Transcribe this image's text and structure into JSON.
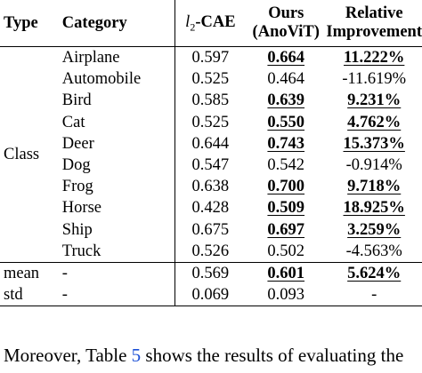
{
  "table": {
    "headers": {
      "type": "Type",
      "category": "Category",
      "baseline_symbol": "l",
      "baseline_sub": "2",
      "baseline_suffix": "-CAE",
      "ours_line1": "Ours",
      "ours_line2": "(AnoViT)",
      "rel_line1": "Relative",
      "rel_line2": "Improvement"
    },
    "class_group_label": "Class",
    "class_rows": [
      {
        "category": "Airplane",
        "baseline": "0.597",
        "ours": "0.664",
        "ours_best": true,
        "relative": "11.222%",
        "relative_best": true
      },
      {
        "category": "Automobile",
        "baseline": "0.525",
        "ours": "0.464",
        "ours_best": false,
        "relative": "-11.619%",
        "relative_best": false
      },
      {
        "category": "Bird",
        "baseline": "0.585",
        "ours": "0.639",
        "ours_best": true,
        "relative": "9.231%",
        "relative_best": true
      },
      {
        "category": "Cat",
        "baseline": "0.525",
        "ours": "0.550",
        "ours_best": true,
        "relative": "4.762%",
        "relative_best": true
      },
      {
        "category": "Deer",
        "baseline": "0.644",
        "ours": "0.743",
        "ours_best": true,
        "relative": "15.373%",
        "relative_best": true
      },
      {
        "category": "Dog",
        "baseline": "0.547",
        "ours": "0.542",
        "ours_best": false,
        "relative": "-0.914%",
        "relative_best": false
      },
      {
        "category": "Frog",
        "baseline": "0.638",
        "ours": "0.700",
        "ours_best": true,
        "relative": "9.718%",
        "relative_best": true
      },
      {
        "category": "Horse",
        "baseline": "0.428",
        "ours": "0.509",
        "ours_best": true,
        "relative": "18.925%",
        "relative_best": true
      },
      {
        "category": "Ship",
        "baseline": "0.675",
        "ours": "0.697",
        "ours_best": true,
        "relative": "3.259%",
        "relative_best": true
      },
      {
        "category": "Truck",
        "baseline": "0.526",
        "ours": "0.502",
        "ours_best": false,
        "relative": "-4.563%",
        "relative_best": false
      }
    ],
    "summary_rows": [
      {
        "type": "mean",
        "category": "-",
        "baseline": "0.569",
        "ours": "0.601",
        "ours_best": true,
        "relative": "5.624%",
        "relative_best": true
      },
      {
        "type": "std",
        "category": "-",
        "baseline": "0.069",
        "ours": "0.093",
        "ours_best": false,
        "relative": "-",
        "relative_best": false
      }
    ]
  },
  "caption": {
    "prefix": "Moreover, Table ",
    "ref": "5",
    "suffix": " shows the results of evaluating the"
  }
}
